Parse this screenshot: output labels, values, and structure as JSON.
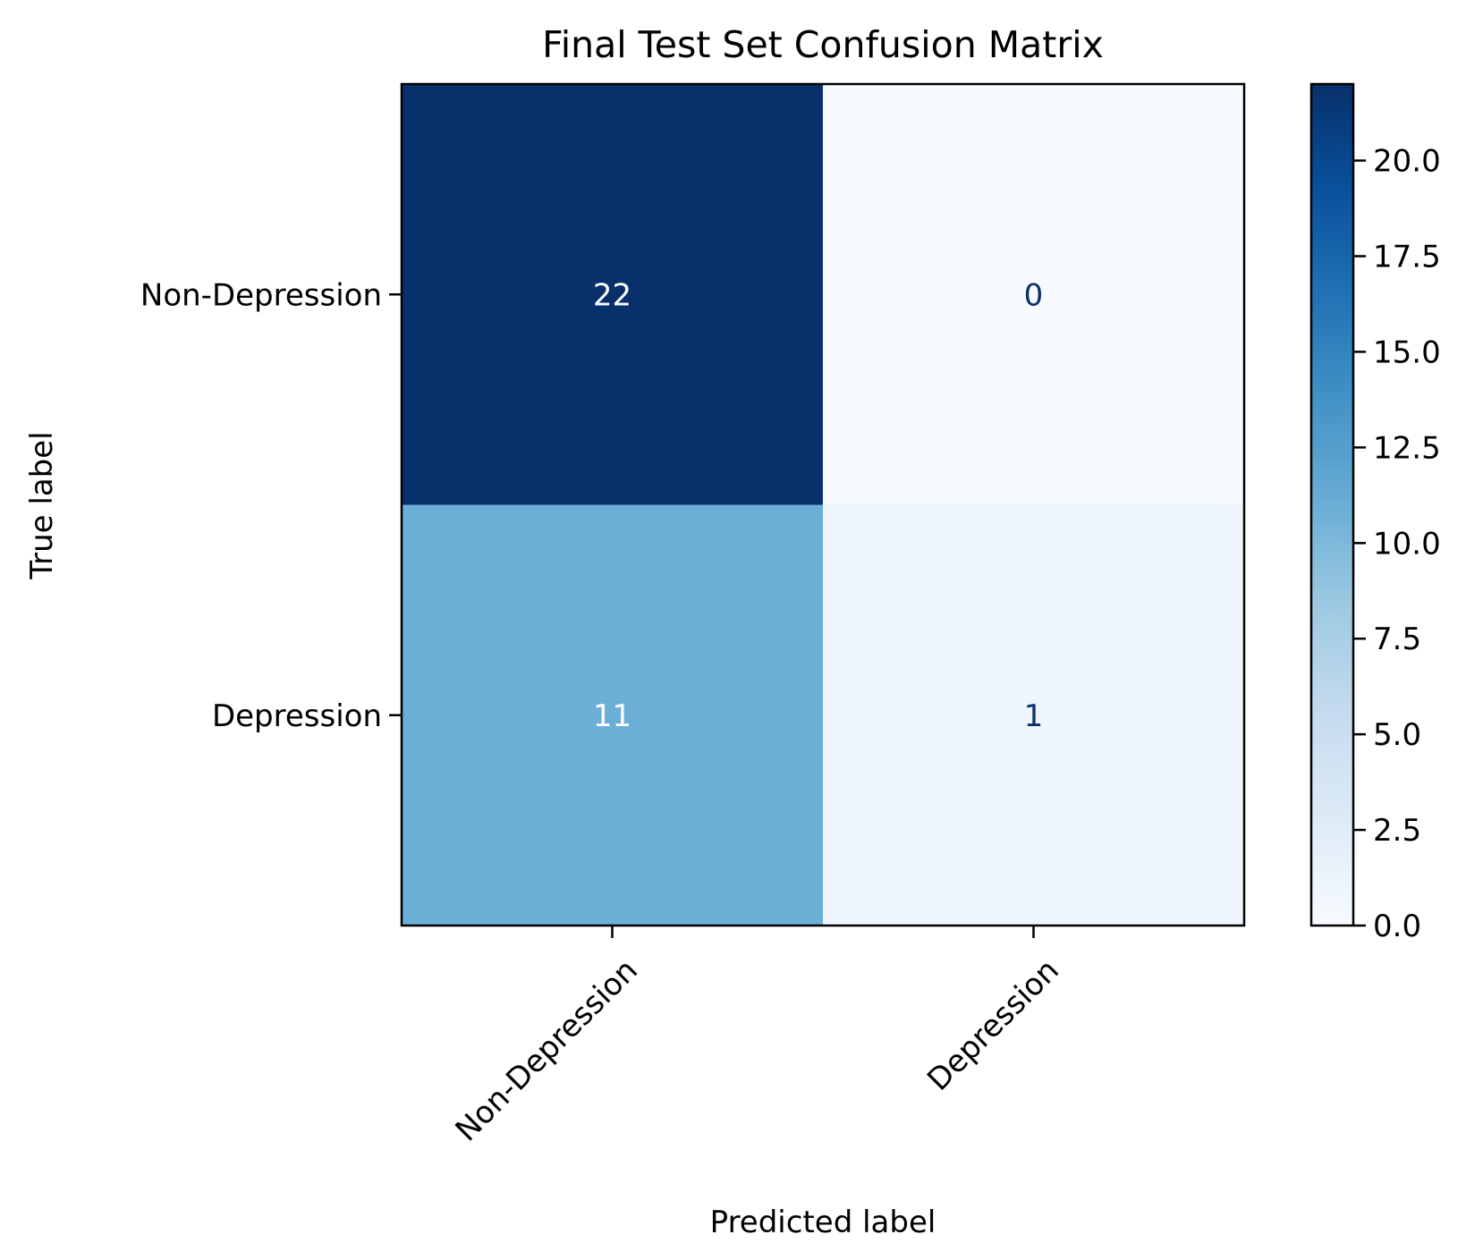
{
  "chart_data": {
    "type": "heatmap",
    "title": "Final Test Set Confusion Matrix",
    "xlabel": "Predicted label",
    "ylabel": "True label",
    "x_categories": [
      "Non-Depression",
      "Depression"
    ],
    "y_categories": [
      "Non-Depression",
      "Depression"
    ],
    "values": [
      [
        22,
        0
      ],
      [
        11,
        1
      ]
    ],
    "colormap": "Blues",
    "color_range": [
      0,
      22
    ],
    "colorbar_ticks": [
      "0.0",
      "2.5",
      "5.0",
      "7.5",
      "10.0",
      "12.5",
      "15.0",
      "17.5",
      "20.0"
    ],
    "colors": {
      "cell_text_dark_bg": "#ffffff",
      "cell_text_light_bg": "#08306b",
      "axis": "#000000"
    }
  }
}
